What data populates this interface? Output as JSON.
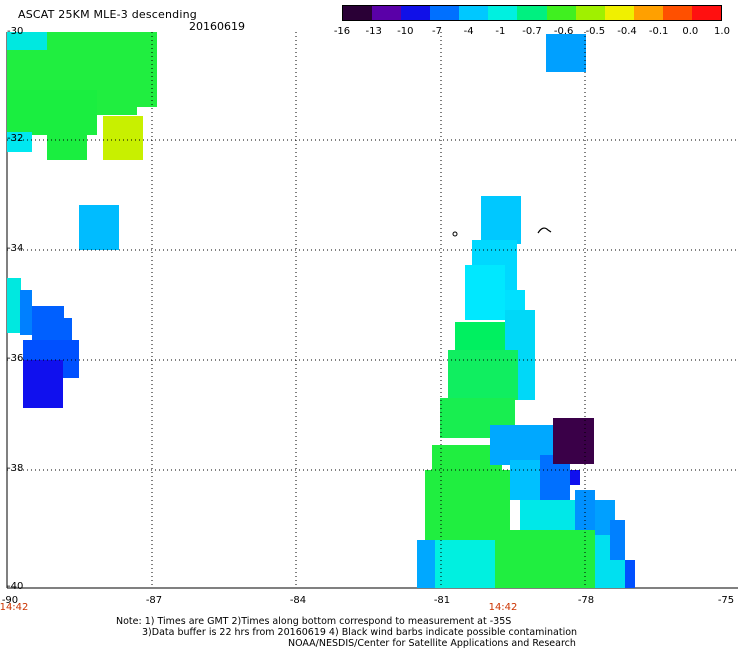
{
  "header": {
    "title": "ASCAT 25KM MLE-3 descending",
    "date": "20160619"
  },
  "colorbar": {
    "labels": [
      "-16",
      "-13",
      "-10",
      "-7",
      "-4",
      "-1",
      "-0.7",
      "-0.6",
      "-0.5",
      "-0.4",
      "-0.1",
      "0.0",
      "1.0"
    ],
    "colors": [
      "#2a0036",
      "#5a00a8",
      "#1010e8",
      "#0070ff",
      "#00c8ff",
      "#00f0e0",
      "#00f080",
      "#40f020",
      "#a0f000",
      "#f0f000",
      "#ffa000",
      "#ff5000",
      "#ff1010"
    ]
  },
  "axes": {
    "lat_labels": [
      "-30",
      "-32",
      "-34",
      "-36",
      "-38",
      "-40"
    ],
    "lon_labels": [
      "-90",
      "-87",
      "-84",
      "-81",
      "-78",
      "-75"
    ],
    "time_labels": [
      "14:42",
      "14:42"
    ]
  },
  "notes": {
    "line1": "Note: 1) Times are GMT 2)Times along bottom correspond to measurement at -35S",
    "line2": "3)Data buffer is 22 hrs from 20160619 4) Black wind barbs indicate possible contamination",
    "line3": "NOAA/NESDIS/Center for Satellite Applications and Research"
  }
}
